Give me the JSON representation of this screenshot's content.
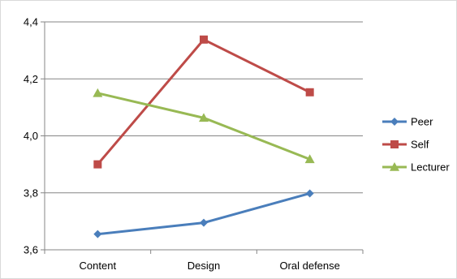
{
  "chart_data": {
    "type": "line",
    "title": "",
    "xlabel": "",
    "ylabel": "",
    "categories": [
      "Content",
      "Design",
      "Oral defense"
    ],
    "ylim": [
      3.6,
      4.4
    ],
    "yticks": [
      "3,6",
      "3,8",
      "4,0",
      "4,2",
      "4,4"
    ],
    "ytick_values": [
      3.6,
      3.8,
      4.0,
      4.2,
      4.4
    ],
    "grid": true,
    "legend_position": "right",
    "series": [
      {
        "name": "Peer",
        "values": [
          3.655,
          3.695,
          3.798
        ],
        "color": "#4a7ebb",
        "marker": "diamond"
      },
      {
        "name": "Self",
        "values": [
          3.9,
          4.338,
          4.153
        ],
        "color": "#be4b48",
        "marker": "square"
      },
      {
        "name": "Lecturer",
        "values": [
          4.15,
          4.063,
          3.918
        ],
        "color": "#98b954",
        "marker": "triangle"
      }
    ]
  }
}
